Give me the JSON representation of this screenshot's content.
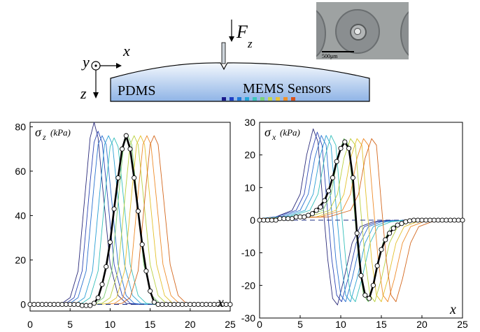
{
  "schematic": {
    "force_label": "F",
    "force_sub": "z",
    "axis_y": "y",
    "axis_x": "x",
    "axis_z": "z",
    "pdms_label": "PDMS",
    "sensors_label": "MEMS Sensors",
    "scale_label": "500μm",
    "sensor_colors": [
      "#1a1a8c",
      "#1f3fc4",
      "#1e78d8",
      "#22a6d8",
      "#3cc6b8",
      "#7ad17a",
      "#c2d64a",
      "#e8c338",
      "#f0902a",
      "#d9521c"
    ],
    "body_fill_top": "#f4f8fd",
    "body_fill_bottom": "#8fb4e6"
  },
  "chart_data": [
    {
      "type": "line",
      "ylabel": "σ",
      "ylabel_sub": "z",
      "ylabel_unit": "(kPa)",
      "xlabel": "x",
      "xlim": [
        0,
        25
      ],
      "ylim": [
        -3,
        82
      ],
      "xticks": [
        0,
        5,
        10,
        15,
        20,
        25
      ],
      "yticks": [
        0,
        20,
        40,
        60,
        80
      ],
      "thin_series": [
        {
          "color": "#2a2a7a",
          "x": [
            3,
            4,
            5,
            6,
            7,
            7.5,
            8,
            8.5,
            9,
            10,
            11,
            12,
            13,
            14
          ],
          "y": [
            0,
            0.5,
            3,
            15,
            55,
            75,
            82,
            75,
            55,
            18,
            4,
            0.5,
            0,
            0
          ]
        },
        {
          "color": "#2d46b4",
          "x": [
            3.5,
            4.5,
            5.5,
            6.5,
            7.5,
            8,
            8.5,
            9,
            9.5,
            10.5,
            11.5,
            12.5,
            13.5,
            14.5
          ],
          "y": [
            0,
            0.5,
            3,
            15,
            55,
            73,
            78,
            73,
            55,
            18,
            4,
            0.5,
            0,
            0
          ]
        },
        {
          "color": "#2a72d0",
          "x": [
            4,
            5,
            6,
            7,
            8,
            8.5,
            9,
            9.5,
            10,
            11,
            12,
            13,
            14,
            15
          ],
          "y": [
            0,
            0.5,
            3,
            15,
            54,
            72,
            76,
            72,
            54,
            18,
            4,
            0.5,
            0,
            0
          ]
        },
        {
          "color": "#2aa0d4",
          "x": [
            4.8,
            5.8,
            6.8,
            7.8,
            8.8,
            9.3,
            9.8,
            10.3,
            10.8,
            11.8,
            12.8,
            13.8,
            14.8,
            15.8
          ],
          "y": [
            0,
            0.5,
            3,
            15,
            54,
            72,
            76,
            72,
            54,
            18,
            4,
            0.5,
            0,
            0
          ]
        },
        {
          "color": "#35bfba",
          "x": [
            5.5,
            6.5,
            7.5,
            8.5,
            9.5,
            10,
            10.5,
            11,
            11.5,
            12.5,
            13.5,
            14.5,
            15.5,
            16.5
          ],
          "y": [
            0,
            0.5,
            3,
            15,
            54,
            71,
            75,
            71,
            54,
            18,
            4,
            0.5,
            0,
            0
          ]
        },
        {
          "color": "#79cc6e",
          "x": [
            7.2,
            8.2,
            9.2,
            10.2,
            11.2,
            11.7,
            12.2,
            12.7,
            13.2,
            14.2,
            15.2,
            16.2,
            17.2,
            18.2
          ],
          "y": [
            0,
            0.5,
            3,
            15,
            54,
            72,
            76,
            72,
            54,
            18,
            4,
            0.5,
            0,
            0
          ]
        },
        {
          "color": "#b9d040",
          "x": [
            8,
            9,
            10,
            11,
            12,
            12.5,
            13,
            13.5,
            14,
            15,
            16,
            17,
            18,
            19
          ],
          "y": [
            0,
            0.5,
            3,
            15,
            54,
            72,
            76,
            72,
            54,
            18,
            4,
            0.5,
            0,
            0
          ]
        },
        {
          "color": "#e3c12c",
          "x": [
            8.8,
            9.8,
            10.8,
            11.8,
            12.8,
            13.3,
            13.8,
            14.3,
            14.8,
            15.8,
            16.8,
            17.8,
            18.8,
            19.8
          ],
          "y": [
            0,
            0.5,
            3,
            15,
            54,
            72,
            76,
            72,
            54,
            18,
            4,
            0.5,
            0,
            0
          ]
        },
        {
          "color": "#ee8c2a",
          "x": [
            9.6,
            10.6,
            11.6,
            12.6,
            13.6,
            14.1,
            14.6,
            15.1,
            15.6,
            16.6,
            17.6,
            18.6,
            19.6,
            20.6
          ],
          "y": [
            0,
            0.5,
            3,
            15,
            54,
            72,
            76,
            72,
            54,
            18,
            4,
            0.5,
            0,
            0
          ]
        },
        {
          "color": "#d4681e",
          "x": [
            10.5,
            11.5,
            12.5,
            13.5,
            14.5,
            15,
            15.5,
            16,
            16.5,
            17.5,
            18.5,
            19.5,
            20.5,
            21.5
          ],
          "y": [
            0,
            0.5,
            3,
            15,
            54,
            72,
            76,
            72,
            54,
            18,
            4,
            0.5,
            0,
            0
          ]
        }
      ],
      "fit_curve": {
        "x": [
          0,
          6,
          7,
          7.5,
          8,
          8.5,
          9,
          9.5,
          10,
          10.5,
          11,
          11.5,
          12,
          12.5,
          13,
          13.5,
          14,
          14.5,
          15,
          15.5,
          16,
          17,
          18,
          25
        ],
        "y": [
          0,
          0,
          -0.5,
          -0.5,
          0.5,
          3,
          9,
          17,
          28,
          43,
          57,
          70,
          76,
          70,
          57,
          42,
          27,
          15,
          6,
          1,
          0,
          0,
          0,
          0
        ]
      },
      "measured_points": {
        "x": [
          0,
          0.5,
          1,
          1.5,
          2,
          2.5,
          3,
          3.5,
          4,
          4.5,
          5,
          5.5,
          6,
          6.5,
          7,
          7.5,
          8,
          8.5,
          9,
          9.5,
          10,
          10.5,
          11,
          11.5,
          12,
          12.5,
          13,
          13.5,
          14,
          14.5,
          15,
          15.5,
          16,
          16.5,
          17,
          17.5,
          18,
          18.5,
          19,
          19.5,
          20,
          20.5,
          21,
          21.5,
          22,
          22.5,
          23,
          23.5,
          24,
          24.5,
          25
        ],
        "y": [
          0,
          0,
          0,
          0,
          0,
          0,
          0,
          0,
          0,
          0,
          0,
          0,
          0,
          -0.5,
          -0.5,
          -0.5,
          0.5,
          3,
          9,
          17,
          28,
          43,
          57,
          70,
          76,
          70,
          57,
          42,
          27,
          15,
          6,
          1,
          0,
          0,
          0,
          0,
          0,
          0,
          0,
          0,
          0,
          0,
          0,
          0,
          0,
          0,
          0,
          0,
          0,
          0,
          0
        ]
      }
    },
    {
      "type": "line",
      "ylabel": "σ",
      "ylabel_sub": "x",
      "ylabel_unit": "(kPa)",
      "xlabel": "x",
      "xlim": [
        0,
        25
      ],
      "ylim": [
        -30,
        30
      ],
      "xticks": [
        0,
        5,
        10,
        15,
        20,
        25
      ],
      "yticks": [
        -30,
        -20,
        -10,
        0,
        10,
        20,
        30
      ],
      "thin_series": [
        {
          "color": "#2a2a7a",
          "x": [
            0,
            2,
            4,
            5,
            5.8,
            6.6,
            7.2,
            7.8,
            8.4,
            9,
            9.6,
            10.4,
            11.4,
            12.4,
            14,
            16
          ],
          "y": [
            0.5,
            1,
            3,
            8,
            20,
            28,
            24,
            5,
            -12,
            -24,
            -26,
            -18,
            -7,
            -2,
            -0.5,
            0
          ]
        },
        {
          "color": "#2d46b4",
          "x": [
            0,
            2,
            4.5,
            5.5,
            6.3,
            7.1,
            7.7,
            8.3,
            8.9,
            9.5,
            10.1,
            10.9,
            11.9,
            12.9,
            14.5,
            16.5
          ],
          "y": [
            0.5,
            1,
            3,
            8,
            20,
            27,
            23,
            5,
            -12,
            -23,
            -25,
            -18,
            -7,
            -2,
            -0.5,
            0
          ]
        },
        {
          "color": "#2a72d0",
          "x": [
            0,
            2.5,
            5,
            6,
            6.8,
            7.6,
            8.2,
            8.8,
            9.4,
            10,
            10.6,
            11.4,
            12.4,
            13.4,
            15,
            17
          ],
          "y": [
            0.5,
            1,
            3,
            8,
            19,
            26,
            23,
            5,
            -12,
            -23,
            -25,
            -18,
            -7,
            -2,
            -0.5,
            0
          ]
        },
        {
          "color": "#2aa0d4",
          "x": [
            0,
            3,
            5.6,
            6.6,
            7.4,
            8.2,
            8.8,
            9.4,
            10,
            10.6,
            11.2,
            12,
            13,
            14,
            15.6,
            17.6
          ],
          "y": [
            0.5,
            1,
            3,
            8,
            19,
            26,
            23,
            5,
            -12,
            -23,
            -25,
            -18,
            -7,
            -2,
            -0.5,
            0
          ]
        },
        {
          "color": "#35bfba",
          "x": [
            0,
            3.5,
            6.2,
            7.2,
            8,
            8.8,
            9.4,
            10,
            10.6,
            11.2,
            11.8,
            12.6,
            13.6,
            14.6,
            16.2,
            18.2
          ],
          "y": [
            0.5,
            1,
            3,
            8,
            19,
            26,
            23,
            5,
            -12,
            -23,
            -25,
            -18,
            -7,
            -2,
            -0.5,
            0
          ]
        },
        {
          "color": "#79cc6e",
          "x": [
            0,
            5,
            7.8,
            8.8,
            9.6,
            10.4,
            11,
            11.6,
            12.2,
            12.8,
            13.4,
            14.2,
            15.2,
            16.2,
            17.8,
            19.8
          ],
          "y": [
            0.5,
            1,
            3,
            8,
            19,
            25,
            23,
            5,
            -12,
            -23,
            -25,
            -18,
            -7,
            -2,
            -0.5,
            0
          ]
        },
        {
          "color": "#b9d040",
          "x": [
            0,
            6,
            8.6,
            9.6,
            10.4,
            11.2,
            11.8,
            12.4,
            13,
            13.6,
            14.2,
            15,
            16,
            17,
            18.6,
            20.6
          ],
          "y": [
            0.5,
            1,
            3,
            8,
            19,
            25,
            23,
            5,
            -12,
            -23,
            -25,
            -18,
            -7,
            -2,
            -0.5,
            0
          ]
        },
        {
          "color": "#e3c12c",
          "x": [
            0,
            7,
            9.4,
            10.4,
            11.2,
            12,
            12.6,
            13.2,
            13.8,
            14.4,
            15,
            15.8,
            16.8,
            17.8,
            19.4,
            21.4
          ],
          "y": [
            0.5,
            1,
            3,
            8,
            19,
            25,
            23,
            5,
            -12,
            -23,
            -25,
            -18,
            -7,
            -2,
            -0.5,
            0
          ]
        },
        {
          "color": "#ee8c2a",
          "x": [
            0,
            7.5,
            10.2,
            11.2,
            12,
            12.8,
            13.4,
            14,
            14.6,
            15.2,
            15.8,
            16.6,
            17.6,
            18.6,
            20.2,
            22.2
          ],
          "y": [
            0.5,
            1,
            3,
            8,
            19,
            25,
            23,
            5,
            -12,
            -23,
            -25,
            -18,
            -7,
            -2,
            -0.5,
            0
          ]
        },
        {
          "color": "#d4681e",
          "x": [
            0,
            8.5,
            11.2,
            12.2,
            13,
            13.8,
            14.4,
            15,
            15.6,
            16.2,
            16.8,
            17.6,
            18.6,
            19.6,
            21.2,
            23.2
          ],
          "y": [
            0.5,
            1,
            3,
            8,
            19,
            25,
            23,
            5,
            -12,
            -23,
            -25,
            -18,
            -7,
            -2,
            -0.5,
            0
          ]
        }
      ],
      "fit_curve": {
        "x": [
          0,
          4,
          6,
          7,
          8,
          8.5,
          9,
          9.5,
          10,
          10.5,
          11,
          11.5,
          12,
          12.5,
          13,
          13.5,
          14,
          14.5,
          15,
          15.5,
          16,
          16.5,
          17,
          18,
          19,
          20,
          25
        ],
        "y": [
          0,
          0.5,
          1.5,
          3,
          6,
          9,
          13,
          18,
          22,
          24,
          22,
          13,
          -4,
          -17,
          -23,
          -24,
          -20,
          -14,
          -9,
          -6,
          -4,
          -2.5,
          -1.5,
          -0.5,
          -0.2,
          0,
          0
        ]
      },
      "measured_points": {
        "x": [
          0,
          0.5,
          1,
          1.5,
          2,
          2.5,
          3,
          3.5,
          4,
          4.5,
          5,
          5.5,
          6,
          6.5,
          7,
          7.5,
          8,
          8.5,
          9,
          9.5,
          10,
          10.5,
          11,
          11.5,
          12,
          12.5,
          13,
          13.5,
          14,
          14.5,
          15,
          15.5,
          16,
          16.5,
          17,
          17.5,
          18,
          18.5,
          19,
          19.5,
          20,
          20.5,
          21,
          21.5,
          22,
          22.5,
          23,
          23.5,
          24,
          24.5,
          25
        ],
        "y": [
          0,
          0,
          0,
          0,
          0,
          0.5,
          0.5,
          0.5,
          0.5,
          1,
          1,
          1,
          1.5,
          2,
          3,
          4,
          6,
          9,
          13,
          18,
          22,
          24,
          22,
          13,
          -4,
          -17,
          -23,
          -24,
          -20,
          -14,
          -9,
          -6,
          -4,
          -2.5,
          -1.5,
          -1,
          -0.5,
          -0.2,
          0,
          0,
          0,
          0,
          0,
          0,
          0,
          0,
          0,
          0,
          0,
          0,
          0
        ]
      }
    }
  ]
}
